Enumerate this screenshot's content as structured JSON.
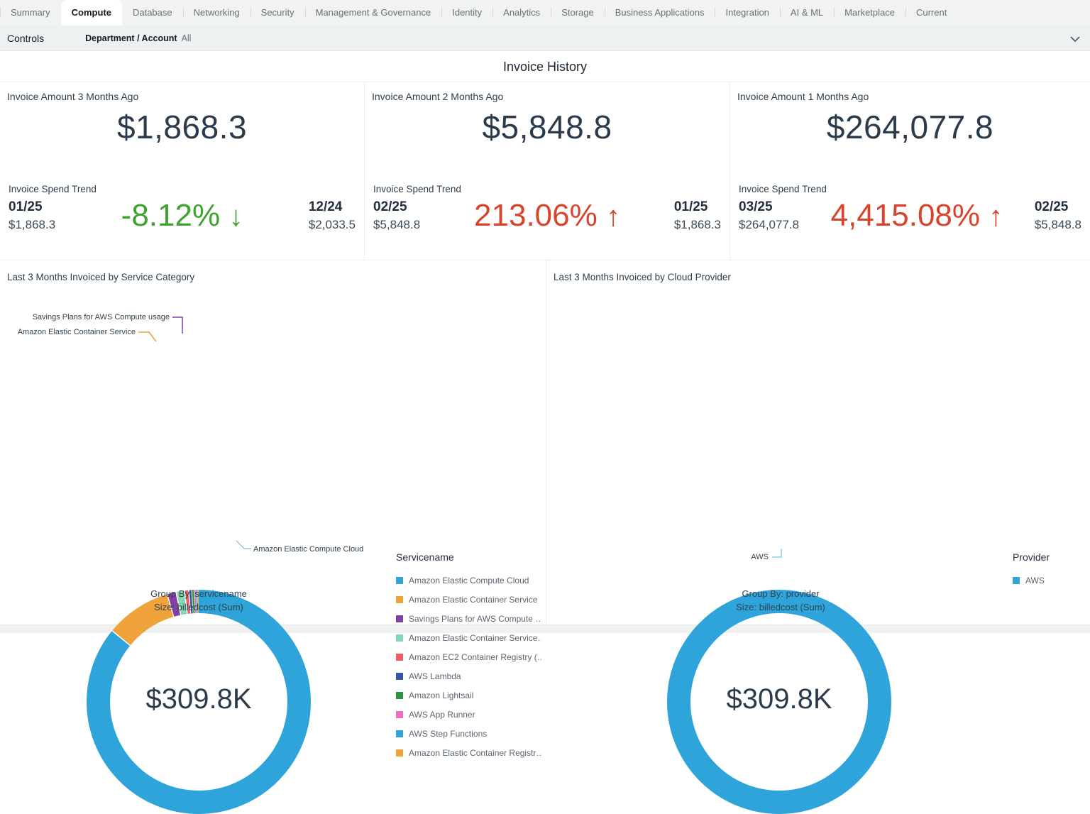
{
  "tab_bar": {
    "tabs": [
      {
        "label": "Summary",
        "active": false
      },
      {
        "label": "Compute",
        "active": true
      },
      {
        "label": "Database",
        "active": false
      },
      {
        "label": "Networking",
        "active": false
      },
      {
        "label": "Security",
        "active": false
      },
      {
        "label": "Management & Governance",
        "active": false
      },
      {
        "label": "Identity",
        "active": false
      },
      {
        "label": "Analytics",
        "active": false
      },
      {
        "label": "Storage",
        "active": false
      },
      {
        "label": "Business Applications",
        "active": false
      },
      {
        "label": "Integration",
        "active": false
      },
      {
        "label": "AI & ML",
        "active": false
      },
      {
        "label": "Marketplace",
        "active": false
      },
      {
        "label": "Current",
        "active": false
      }
    ]
  },
  "controls_bar": {
    "label": "Controls",
    "filter_name": "Department / Account",
    "filter_value": "All",
    "collapse_icon": "chevron-down-icon"
  },
  "page_title": "Invoice History",
  "kpi_cards": [
    {
      "label": "Invoice Amount 3 Months Ago",
      "value": "$1,868.3"
    },
    {
      "label": "Invoice Amount 2 Months Ago",
      "value": "$5,848.8"
    },
    {
      "label": "Invoice Amount 1 Months Ago",
      "value": "$264,077.8"
    }
  ],
  "trend_cards": [
    {
      "label": "Invoice Spend Trend",
      "current": {
        "period": "01/25",
        "value": "$1,868.3"
      },
      "change": {
        "percent": "-8.12%",
        "arrow": "↓",
        "direction": "down",
        "color": "#3da32e"
      },
      "previous": {
        "period": "12/24",
        "value": "$2,033.5"
      }
    },
    {
      "label": "Invoice Spend Trend",
      "current": {
        "period": "02/25",
        "value": "$5,848.8"
      },
      "change": {
        "percent": "213.06%",
        "arrow": "↑",
        "direction": "up",
        "color": "#d8432c"
      },
      "previous": {
        "period": "01/25",
        "value": "$1,868.3"
      }
    },
    {
      "label": "Invoice Spend Trend",
      "current": {
        "period": "03/25",
        "value": "$264,077.8"
      },
      "change": {
        "percent": "4,415.08%",
        "arrow": "↑",
        "direction": "up",
        "color": "#d8432c"
      },
      "previous": {
        "period": "02/25",
        "value": "$5,848.8"
      }
    }
  ],
  "chart_data": [
    {
      "type": "pie",
      "variant": "donut",
      "title": "Last 3 Months Invoiced by Service Category",
      "center_label": "$309.8K",
      "legend_title": "Servicename",
      "legend_position": "right",
      "footer": [
        "Group By: servicename",
        "Size: billedcost (Sum)"
      ],
      "slices": [
        {
          "label": "Amazon Elastic Compute Cloud",
          "legend_label": "Amazon Elastic Compute Cloud",
          "percent_est": 86.0,
          "color": "#2ea4db"
        },
        {
          "label": "Amazon Elastic Container Service",
          "legend_label": "Amazon Elastic Container Service",
          "percent_est": 9.5,
          "color": "#f0a33a"
        },
        {
          "label": "Savings Plans for AWS Compute usage",
          "legend_label": "Savings Plans for AWS Compute …",
          "percent_est": 1.3,
          "color": "#8441a4"
        },
        {
          "label": "Amazon Elastic Container Service…",
          "legend_label": "Amazon Elastic Container Service…",
          "percent_est": 1.2,
          "color": "#83d7b4"
        },
        {
          "label": "Amazon EC2 Container Registry (…",
          "legend_label": "Amazon EC2 Container Registry (…",
          "percent_est": 0.6,
          "color": "#f05d63"
        },
        {
          "label": "AWS Lambda",
          "legend_label": "AWS Lambda",
          "percent_est": 0.4,
          "color": "#3d55a5"
        },
        {
          "label": "Amazon Lightsail",
          "legend_label": "Amazon Lightsail",
          "percent_est": 0.35,
          "color": "#2c9441"
        },
        {
          "label": "AWS App Runner",
          "legend_label": "AWS App Runner",
          "percent_est": 0.25,
          "color": "#ec6fc4"
        },
        {
          "label": "AWS Step Functions",
          "legend_label": "AWS Step Functions",
          "percent_est": 0.2,
          "color": "#30a3dc"
        },
        {
          "label": "Amazon Elastic Container Registr…",
          "legend_label": "Amazon Elastic Container Registr…",
          "percent_est": 0.2,
          "color": "#f0a33a"
        }
      ],
      "callouts": [
        "Savings Plans for AWS Compute usage",
        "Amazon Elastic Container Service",
        "Amazon Elastic Compute Cloud"
      ]
    },
    {
      "type": "pie",
      "variant": "donut",
      "title": "Last 3 Months Invoiced by Cloud Provider",
      "center_label": "$309.8K",
      "legend_title": "Provider",
      "legend_position": "right",
      "footer": [
        "Group By: provider",
        "Size: billedcost (Sum)"
      ],
      "slices": [
        {
          "label": "AWS",
          "legend_label": "AWS",
          "percent_est": 100,
          "color": "#2ea4db"
        }
      ],
      "callouts": [
        "AWS"
      ]
    }
  ]
}
